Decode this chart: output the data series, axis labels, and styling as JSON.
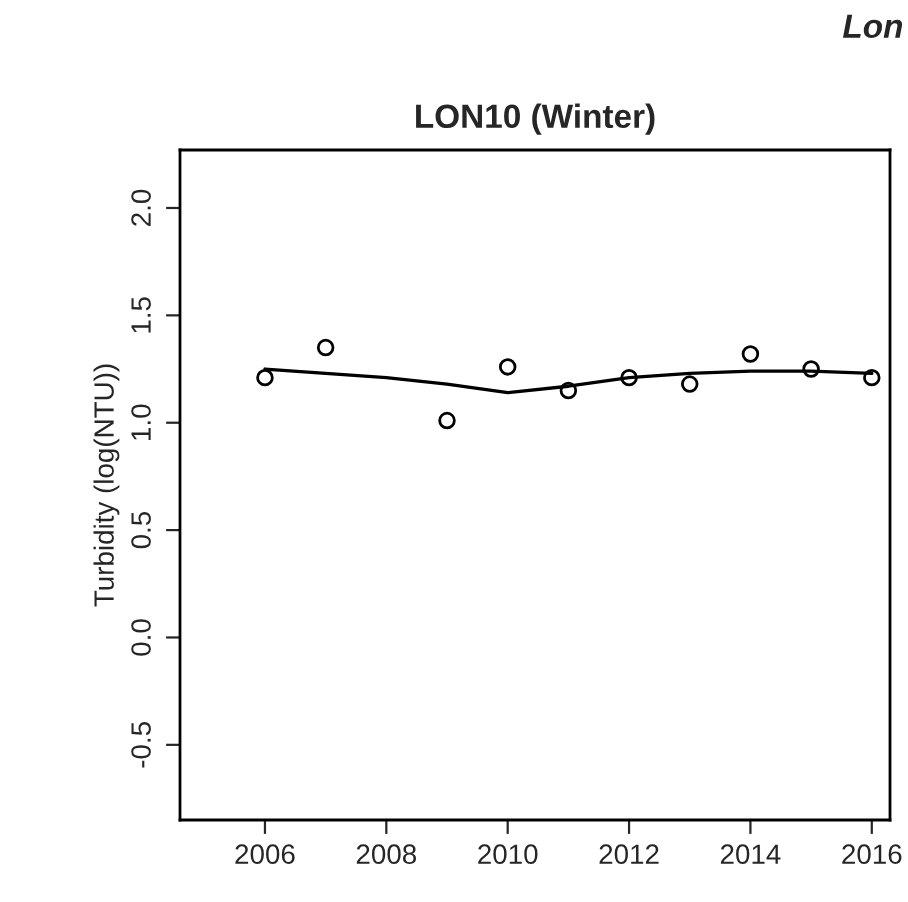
{
  "chart_data": {
    "type": "scatter",
    "title": "LON10 (Winter)",
    "ylabel": "Turbidity (log(NTU))",
    "annotations": [
      "Lon"
    ],
    "x": [
      2006,
      2007,
      2009,
      2010,
      2011,
      2012,
      2013,
      2014,
      2015,
      2016
    ],
    "series": [
      {
        "color": "#000000",
        "marker": "circle",
        "values": [
          1.21,
          1.35,
          1.01,
          1.26,
          1.15,
          1.21,
          1.18,
          1.32,
          1.25,
          1.21
        ]
      },
      {
        "type": "line",
        "color": "#000000",
        "marker": "none",
        "x": [
          2006,
          2007,
          2008,
          2009,
          2010,
          2011,
          2012,
          2013,
          2014,
          2015,
          2016
        ],
        "values": [
          1.25,
          1.23,
          1.21,
          1.18,
          1.14,
          1.17,
          1.21,
          1.23,
          1.24,
          1.24,
          1.23
        ]
      }
    ],
    "xlim": [
      2004.6,
      2016.3
    ],
    "ylim": [
      -0.85,
      2.27
    ],
    "xticks": [
      2006,
      2008,
      2010,
      2012,
      2014,
      2016
    ],
    "yticks": [
      {
        "value": -0.5,
        "label": "-0.5"
      },
      {
        "value": 0,
        "label": "0.0"
      },
      0.5,
      {
        "value": 1,
        "label": "1.0"
      },
      1.5,
      {
        "value": 2,
        "label": "2.0"
      }
    ],
    "grid": false,
    "legend": false
  }
}
